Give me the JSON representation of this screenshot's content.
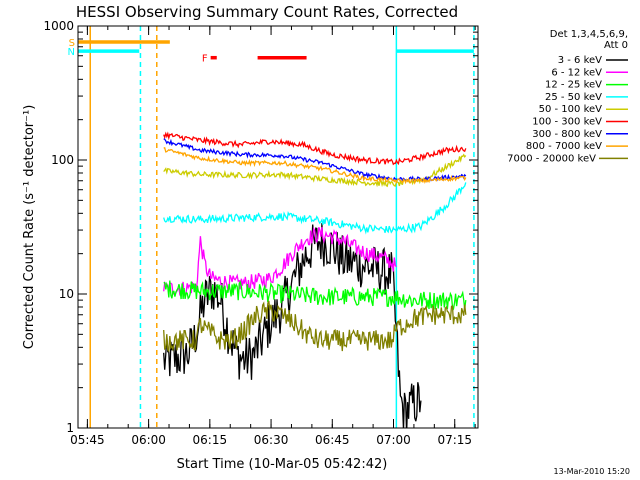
{
  "chart_data": {
    "type": "line",
    "title": "HESSI Observing Summary Count Rates, Corrected",
    "xlabel": "Start Time (10-Mar-05 05:42:42)",
    "ylabel": "Corrected Count Rate (s⁻¹ detector⁻¹)",
    "x_unit": "minutes since 05:42:42",
    "xlim": [
      0,
      98
    ],
    "ylim": [
      1,
      1000
    ],
    "yscale": "log",
    "x_ticks": [
      {
        "x": 2.3,
        "label": "05:45"
      },
      {
        "x": 17.3,
        "label": "06:00"
      },
      {
        "x": 32.3,
        "label": "06:15"
      },
      {
        "x": 47.3,
        "label": "06:30"
      },
      {
        "x": 62.3,
        "label": "06:45"
      },
      {
        "x": 77.3,
        "label": "07:00"
      },
      {
        "x": 92.3,
        "label": "07:15"
      }
    ],
    "y_ticks": [
      {
        "y": 1,
        "label": "1"
      },
      {
        "y": 10,
        "label": "10"
      },
      {
        "y": 100,
        "label": "100"
      },
      {
        "y": 1000,
        "label": "1000"
      }
    ],
    "legend": {
      "position": "right",
      "header": [
        "Det 1,3,4,5,6,9,",
        "Att 0"
      ]
    },
    "series": [
      {
        "name": "3 - 6 keV",
        "color": "#000000",
        "x": [
          21,
          23,
          25,
          27,
          28.5,
          29.5,
          31,
          33,
          35,
          37,
          39,
          41,
          43,
          45,
          47,
          50,
          53,
          56,
          59,
          62,
          65,
          68,
          71,
          74,
          77,
          78,
          79,
          80,
          82,
          84
        ],
        "y": [
          3.2,
          3.2,
          3.4,
          3.6,
          4.5,
          6,
          9,
          11,
          9,
          5,
          3.5,
          3.2,
          3.5,
          4.5,
          6,
          8,
          13,
          20,
          25,
          23,
          18,
          17,
          16,
          15,
          14,
          5,
          1.6,
          1.3,
          1.5,
          1.6
        ],
        "noise": 0.18
      },
      {
        "name": "6 - 12 keV",
        "color": "#ff00ff",
        "x": [
          21,
          26,
          29,
          30,
          31,
          32,
          33,
          35,
          38,
          41,
          44,
          47,
          50,
          53,
          56,
          59,
          62,
          65,
          68,
          71,
          74,
          77,
          78
        ],
        "y": [
          11,
          11,
          11.5,
          25,
          17,
          14,
          13,
          12.5,
          12,
          12,
          12.5,
          13,
          16,
          21,
          26,
          28,
          27,
          25,
          22,
          20,
          19,
          17,
          16
        ],
        "noise": 0.06
      },
      {
        "name": "12 - 25 keV",
        "color": "#00ff00",
        "x": [
          21,
          30,
          40,
          50,
          60,
          70,
          78,
          82,
          90,
          95
        ],
        "y": [
          11,
          10.5,
          10.5,
          10,
          9.5,
          9.5,
          9.5,
          9,
          9,
          9
        ],
        "noise": 0.07
      },
      {
        "name": "25 - 50 keV",
        "color": "#00ffff",
        "x": [
          21,
          30,
          40,
          50,
          60,
          70,
          78,
          84,
          88,
          92,
          95
        ],
        "y": [
          37,
          36,
          37,
          38,
          35,
          31,
          30,
          32,
          40,
          52,
          68
        ],
        "noise": 0.03
      },
      {
        "name": "50 - 100 keV",
        "color": "#cccc00",
        "x": [
          21,
          30,
          40,
          50,
          60,
          70,
          78,
          85,
          90,
          95
        ],
        "y": [
          83,
          78,
          77,
          78,
          72,
          68,
          66,
          72,
          88,
          108
        ],
        "noise": 0.02
      },
      {
        "name": "100 - 300 keV",
        "color": "#ff0000",
        "x": [
          21,
          30,
          40,
          47,
          55,
          62,
          70,
          78,
          84,
          90,
          95
        ],
        "y": [
          155,
          140,
          130,
          138,
          130,
          110,
          100,
          96,
          105,
          118,
          122
        ],
        "noise": 0.02
      },
      {
        "name": "300 - 800 keV",
        "color": "#0000ff",
        "x": [
          21,
          30,
          40,
          50,
          60,
          70,
          78,
          85,
          90,
          95
        ],
        "y": [
          140,
          118,
          110,
          108,
          95,
          78,
          72,
          72,
          74,
          76
        ],
        "noise": 0.015
      },
      {
        "name": "800 - 7000 keV",
        "color": "#ffa500",
        "x": [
          21,
          30,
          40,
          50,
          60,
          70,
          78,
          85,
          90,
          95
        ],
        "y": [
          120,
          103,
          95,
          95,
          86,
          73,
          70,
          70,
          72,
          74
        ],
        "noise": 0.015
      },
      {
        "name": "7000 - 20000 keV",
        "color": "#808000",
        "x": [
          21,
          25,
          29,
          30,
          31,
          33,
          35,
          38,
          41,
          44,
          47,
          50,
          53,
          56,
          59,
          62,
          65,
          68,
          71,
          74,
          77,
          78,
          82,
          86,
          90,
          95
        ],
        "y": [
          4.5,
          4.5,
          4.5,
          6,
          5.5,
          5,
          4.5,
          4.5,
          5.5,
          7,
          7.5,
          7,
          6,
          5,
          4.5,
          4.5,
          4.5,
          4.5,
          4.5,
          4.5,
          4.5,
          5.5,
          6.5,
          7,
          7,
          7
        ],
        "noise": 0.08
      }
    ],
    "flag_markers": [
      {
        "label": "S",
        "color": "#ffa500",
        "x_start": 0,
        "x_end": 22.5,
        "y": 760
      },
      {
        "label": "N",
        "color": "#00ffff",
        "x_start": 0,
        "x_end": 15,
        "y": 650
      },
      {
        "label": "",
        "color": "#00ffff",
        "x_start": 78,
        "x_end": 97,
        "y": 650
      },
      {
        "label": "F",
        "color": "#ff0000",
        "x_start": 32.5,
        "x_end": 34,
        "y": 580
      },
      {
        "label": "",
        "color": "#ff0000",
        "x_start": 44,
        "x_end": 56,
        "y": 580
      }
    ],
    "vertical_lines": [
      {
        "x": 3,
        "color": "#ffa500",
        "style": "solid"
      },
      {
        "x": 15.3,
        "color": "#00ffff",
        "style": "dashed"
      },
      {
        "x": 19.3,
        "color": "#ffa500",
        "style": "dashed"
      },
      {
        "x": 78,
        "color": "#00ffff",
        "style": "solid"
      },
      {
        "x": 97,
        "color": "#00ffff",
        "style": "dashed"
      }
    ]
  },
  "footer": {
    "date_stamp": "13-Mar-2010 15:20"
  }
}
